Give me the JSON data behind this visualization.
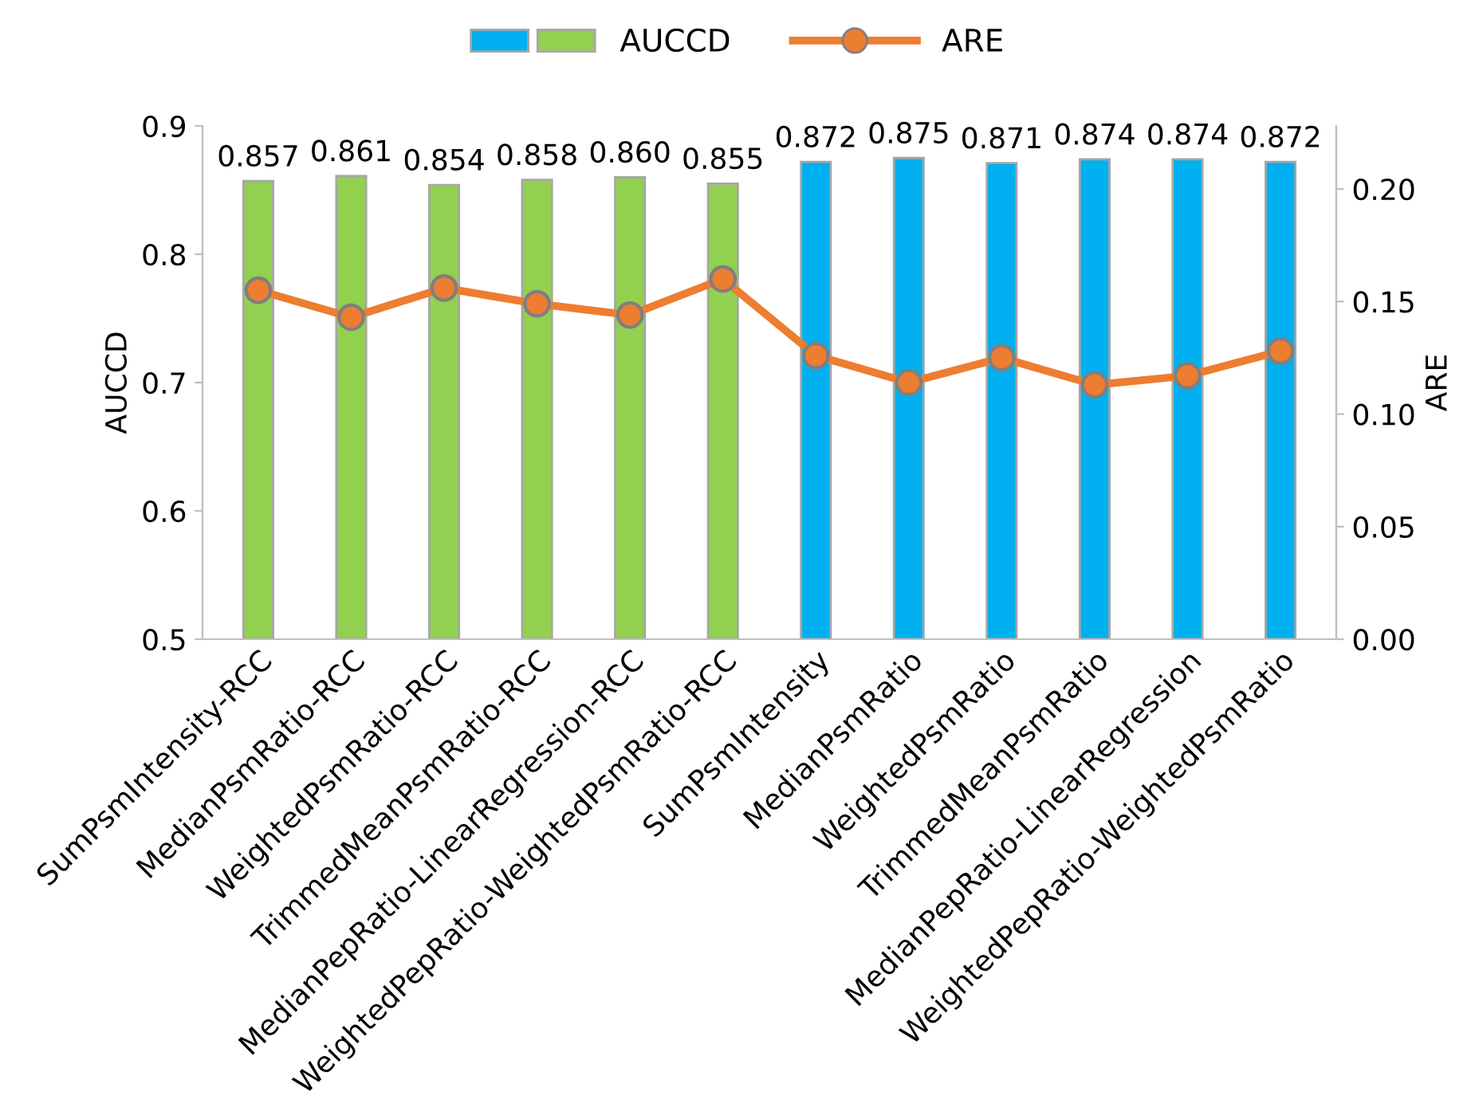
{
  "chart_data": {
    "type": "bar",
    "ylabel": "AUCCD",
    "y2label": "ARE",
    "categories": [
      "SumPsmIntensity-RCC",
      "MedianPsmRatio-RCC",
      "WeightedPsmRatio-RCC",
      "TrimmedMeanPsmRatio-RCC",
      "MedianPepRatio-LinearRegression-RCC",
      "WeightedPepRatio-WeightedPsmRatio-RCC",
      "SumPsmIntensity",
      "MedianPsmRatio",
      "WeightedPsmRatio",
      "TrimmedMeanPsmRatio",
      "MedianPepRatio-LinearRegression",
      "WeightedPepRatio-WeightedPsmRatio"
    ],
    "series": [
      {
        "name": "AUCCD",
        "colors": [
          "#92d050",
          "#92d050",
          "#92d050",
          "#92d050",
          "#92d050",
          "#92d050",
          "#00b0f0",
          "#00b0f0",
          "#00b0f0",
          "#00b0f0",
          "#00b0f0",
          "#00b0f0"
        ],
        "values": [
          0.857,
          0.861,
          0.854,
          0.858,
          0.86,
          0.855,
          0.872,
          0.875,
          0.871,
          0.874,
          0.874,
          0.872
        ],
        "value_labels": [
          "0.857",
          "0.861",
          "0.854",
          "0.858",
          "0.860",
          "0.855",
          "0.872",
          "0.875",
          "0.871",
          "0.874",
          "0.874",
          "0.872"
        ]
      },
      {
        "name": "ARE",
        "type": "line",
        "axis": "y2",
        "color": "#ed7d31",
        "marker": "circle",
        "values": [
          0.155,
          0.143,
          0.156,
          0.149,
          0.144,
          0.16,
          0.126,
          0.114,
          0.125,
          0.113,
          0.117,
          0.128
        ]
      }
    ],
    "ylim": [
      0.5,
      0.9
    ],
    "yticks": [
      0.5,
      0.6,
      0.7,
      0.8,
      0.9
    ],
    "y2lim": [
      0,
      0.228
    ],
    "y2ticks": [
      {
        "value": 0,
        "label": "0.00"
      },
      {
        "value": 0.05,
        "label": "0.05"
      },
      {
        "value": 0.1,
        "label": "0.10"
      },
      {
        "value": 0.15,
        "label": "0.15"
      },
      {
        "value": 0.2,
        "label": "0.20"
      }
    ],
    "grid": false,
    "legend": "top"
  }
}
